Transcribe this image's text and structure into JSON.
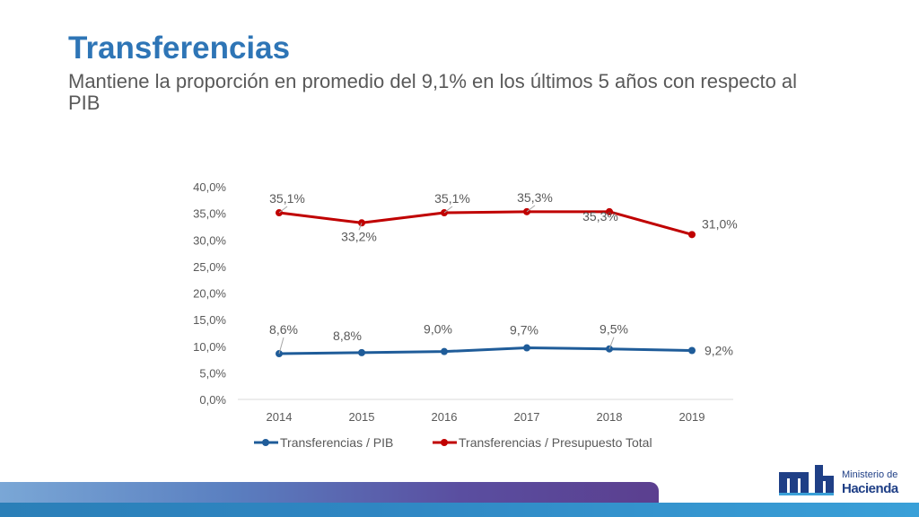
{
  "slide": {
    "title": "Transferencias",
    "subtitle": "Mantiene la proporción en promedio del 9,1% en los últimos 5 años con respecto al PIB"
  },
  "logo": {
    "line1": "Ministerio de",
    "line2": "Hacienda",
    "mark": "mh"
  },
  "colors": {
    "title": "#2E75B6",
    "pib": "#1F5C99",
    "presupuesto": "#C00000",
    "axis_text": "#595959"
  },
  "chart_data": {
    "type": "line",
    "categories": [
      "2014",
      "2015",
      "2016",
      "2017",
      "2018",
      "2019"
    ],
    "ylim": [
      0,
      40
    ],
    "y_ticks": [
      "0,0%",
      "5,0%",
      "10,0%",
      "15,0%",
      "20,0%",
      "25,0%",
      "30,0%",
      "35,0%",
      "40,0%"
    ],
    "grid": false,
    "legend_position": "bottom",
    "series": [
      {
        "name": "Transferencias / PIB",
        "values": [
          8.6,
          8.8,
          9.0,
          9.7,
          9.5,
          9.2
        ],
        "labels": [
          "8,6%",
          "8,8%",
          "9,0%",
          "9,7%",
          "9,5%",
          "9,2%"
        ]
      },
      {
        "name": "Transferencias / Presupuesto Total",
        "values": [
          35.1,
          33.2,
          35.1,
          35.3,
          35.3,
          31.0
        ],
        "labels": [
          "35,1%",
          "33,2%",
          "35,1%",
          "35,3%",
          "35,3%",
          "31,0%"
        ]
      }
    ]
  }
}
